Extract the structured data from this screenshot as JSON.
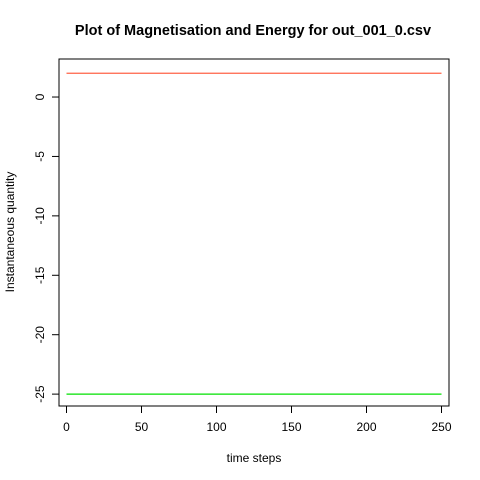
{
  "chart_data": {
    "type": "line",
    "title": "Plot of Magnetisation and Energy for out_001_0.csv",
    "xlabel": "time steps",
    "ylabel": "Instantaneous quantity",
    "xlim": [
      -5,
      255
    ],
    "ylim": [
      -26,
      3.2
    ],
    "x_ticks": [
      0,
      50,
      100,
      150,
      200,
      250
    ],
    "y_ticks": [
      0,
      -5,
      -10,
      -15,
      -20,
      -25
    ],
    "grid": false,
    "series": [
      {
        "color": "#ff6347",
        "x": [
          0,
          250
        ],
        "values": [
          2,
          2
        ]
      },
      {
        "color": "#00e000",
        "x": [
          0,
          250
        ],
        "values": [
          -25,
          -25
        ]
      }
    ]
  }
}
